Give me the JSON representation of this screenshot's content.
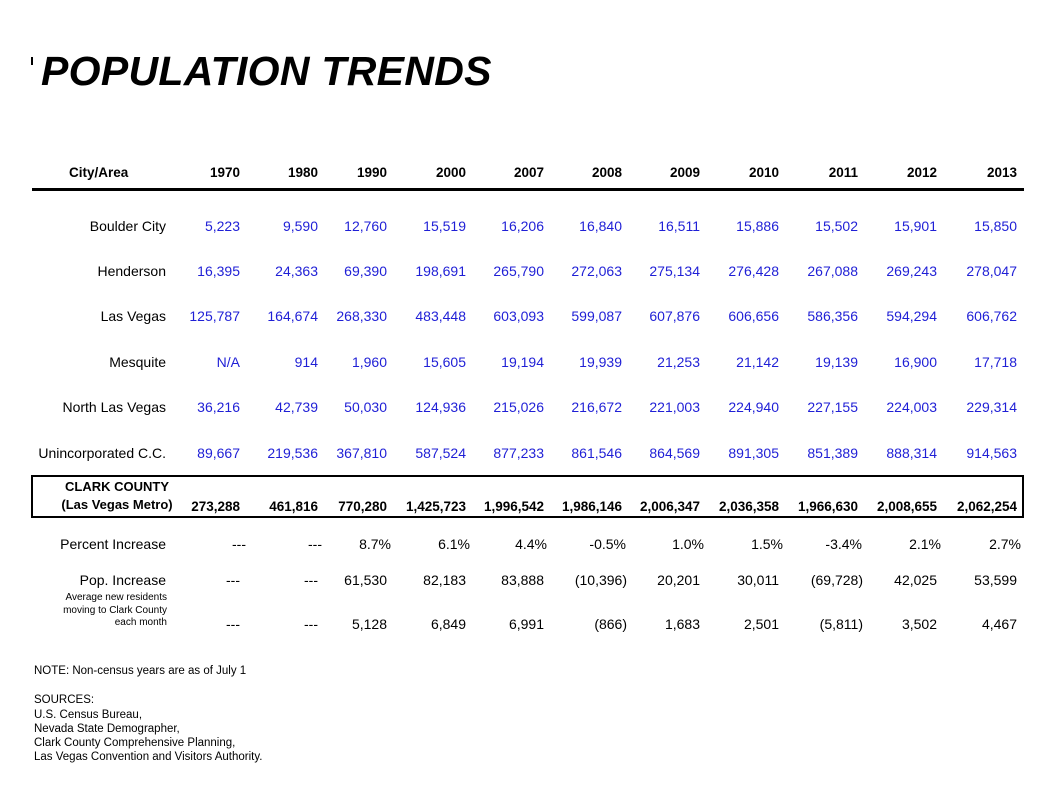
{
  "title": "POPULATION TRENDS",
  "table": {
    "header_label": "City/Area",
    "years": [
      "1970",
      "1980",
      "1990",
      "2000",
      "2007",
      "2008",
      "2009",
      "2010",
      "2011",
      "2012",
      "2013"
    ],
    "rows": [
      {
        "name": "Boulder City",
        "values": [
          "5,223",
          "9,590",
          "12,760",
          "15,519",
          "16,206",
          "16,840",
          "16,511",
          "15,886",
          "15,502",
          "15,901",
          "15,850"
        ]
      },
      {
        "name": "Henderson",
        "values": [
          "16,395",
          "24,363",
          "69,390",
          "198,691",
          "265,790",
          "272,063",
          "275,134",
          "276,428",
          "267,088",
          "269,243",
          "278,047"
        ]
      },
      {
        "name": "Las Vegas",
        "values": [
          "125,787",
          "164,674",
          "268,330",
          "483,448",
          "603,093",
          "599,087",
          "607,876",
          "606,656",
          "586,356",
          "594,294",
          "606,762"
        ]
      },
      {
        "name": "Mesquite",
        "values": [
          "N/A",
          "914",
          "1,960",
          "15,605",
          "19,194",
          "19,939",
          "21,253",
          "21,142",
          "19,139",
          "16,900",
          "17,718"
        ]
      },
      {
        "name": "North Las Vegas",
        "values": [
          "36,216",
          "42,739",
          "50,030",
          "124,936",
          "215,026",
          "216,672",
          "221,003",
          "224,940",
          "227,155",
          "224,003",
          "229,314"
        ]
      },
      {
        "name": "Unincorporated C.C.",
        "values": [
          "89,667",
          "219,536",
          "367,810",
          "587,524",
          "877,233",
          "861,546",
          "864,569",
          "891,305",
          "851,389",
          "888,314",
          "914,563"
        ]
      }
    ],
    "clark_county": {
      "label_line1": "CLARK COUNTY",
      "label_line2": "(Las Vegas Metro)",
      "values": [
        "273,288",
        "461,816",
        "770,280",
        "1,425,723",
        "1,996,542",
        "1,986,146",
        "2,006,347",
        "2,036,358",
        "1,966,630",
        "2,008,655",
        "2,062,254"
      ]
    },
    "percent_increase": {
      "label": "Percent Increase",
      "values": [
        "---",
        "---",
        "8.7%",
        "6.1%",
        "4.4%",
        "-0.5%",
        "1.0%",
        "1.5%",
        "-3.4%",
        "2.1%",
        "2.7%"
      ]
    },
    "pop_increase": {
      "label": "Pop. Increase",
      "values": [
        "---",
        "---",
        "61,530",
        "82,183",
        "83,888",
        "(10,396)",
        "20,201",
        "30,011",
        "(69,728)",
        "42,025",
        "53,599"
      ]
    },
    "monthly": {
      "label_line1": "Average new residents",
      "label_line2": "moving to Clark County",
      "label_line3": "each month",
      "values": [
        "---",
        "---",
        "5,128",
        "6,849",
        "6,991",
        "(866)",
        "1,683",
        "2,501",
        "(5,811)",
        "3,502",
        "4,467"
      ]
    }
  },
  "note": "NOTE:  Non-census years are as of July 1",
  "sources": {
    "heading": "SOURCES:",
    "lines": [
      "U.S. Census Bureau,",
      "Nevada State Demographer,",
      "Clark County Comprehensive Planning,",
      "Las Vegas Convention and Visitors Authority."
    ]
  },
  "colors": {
    "data_text": "#1f1fd6",
    "text": "#000000"
  }
}
